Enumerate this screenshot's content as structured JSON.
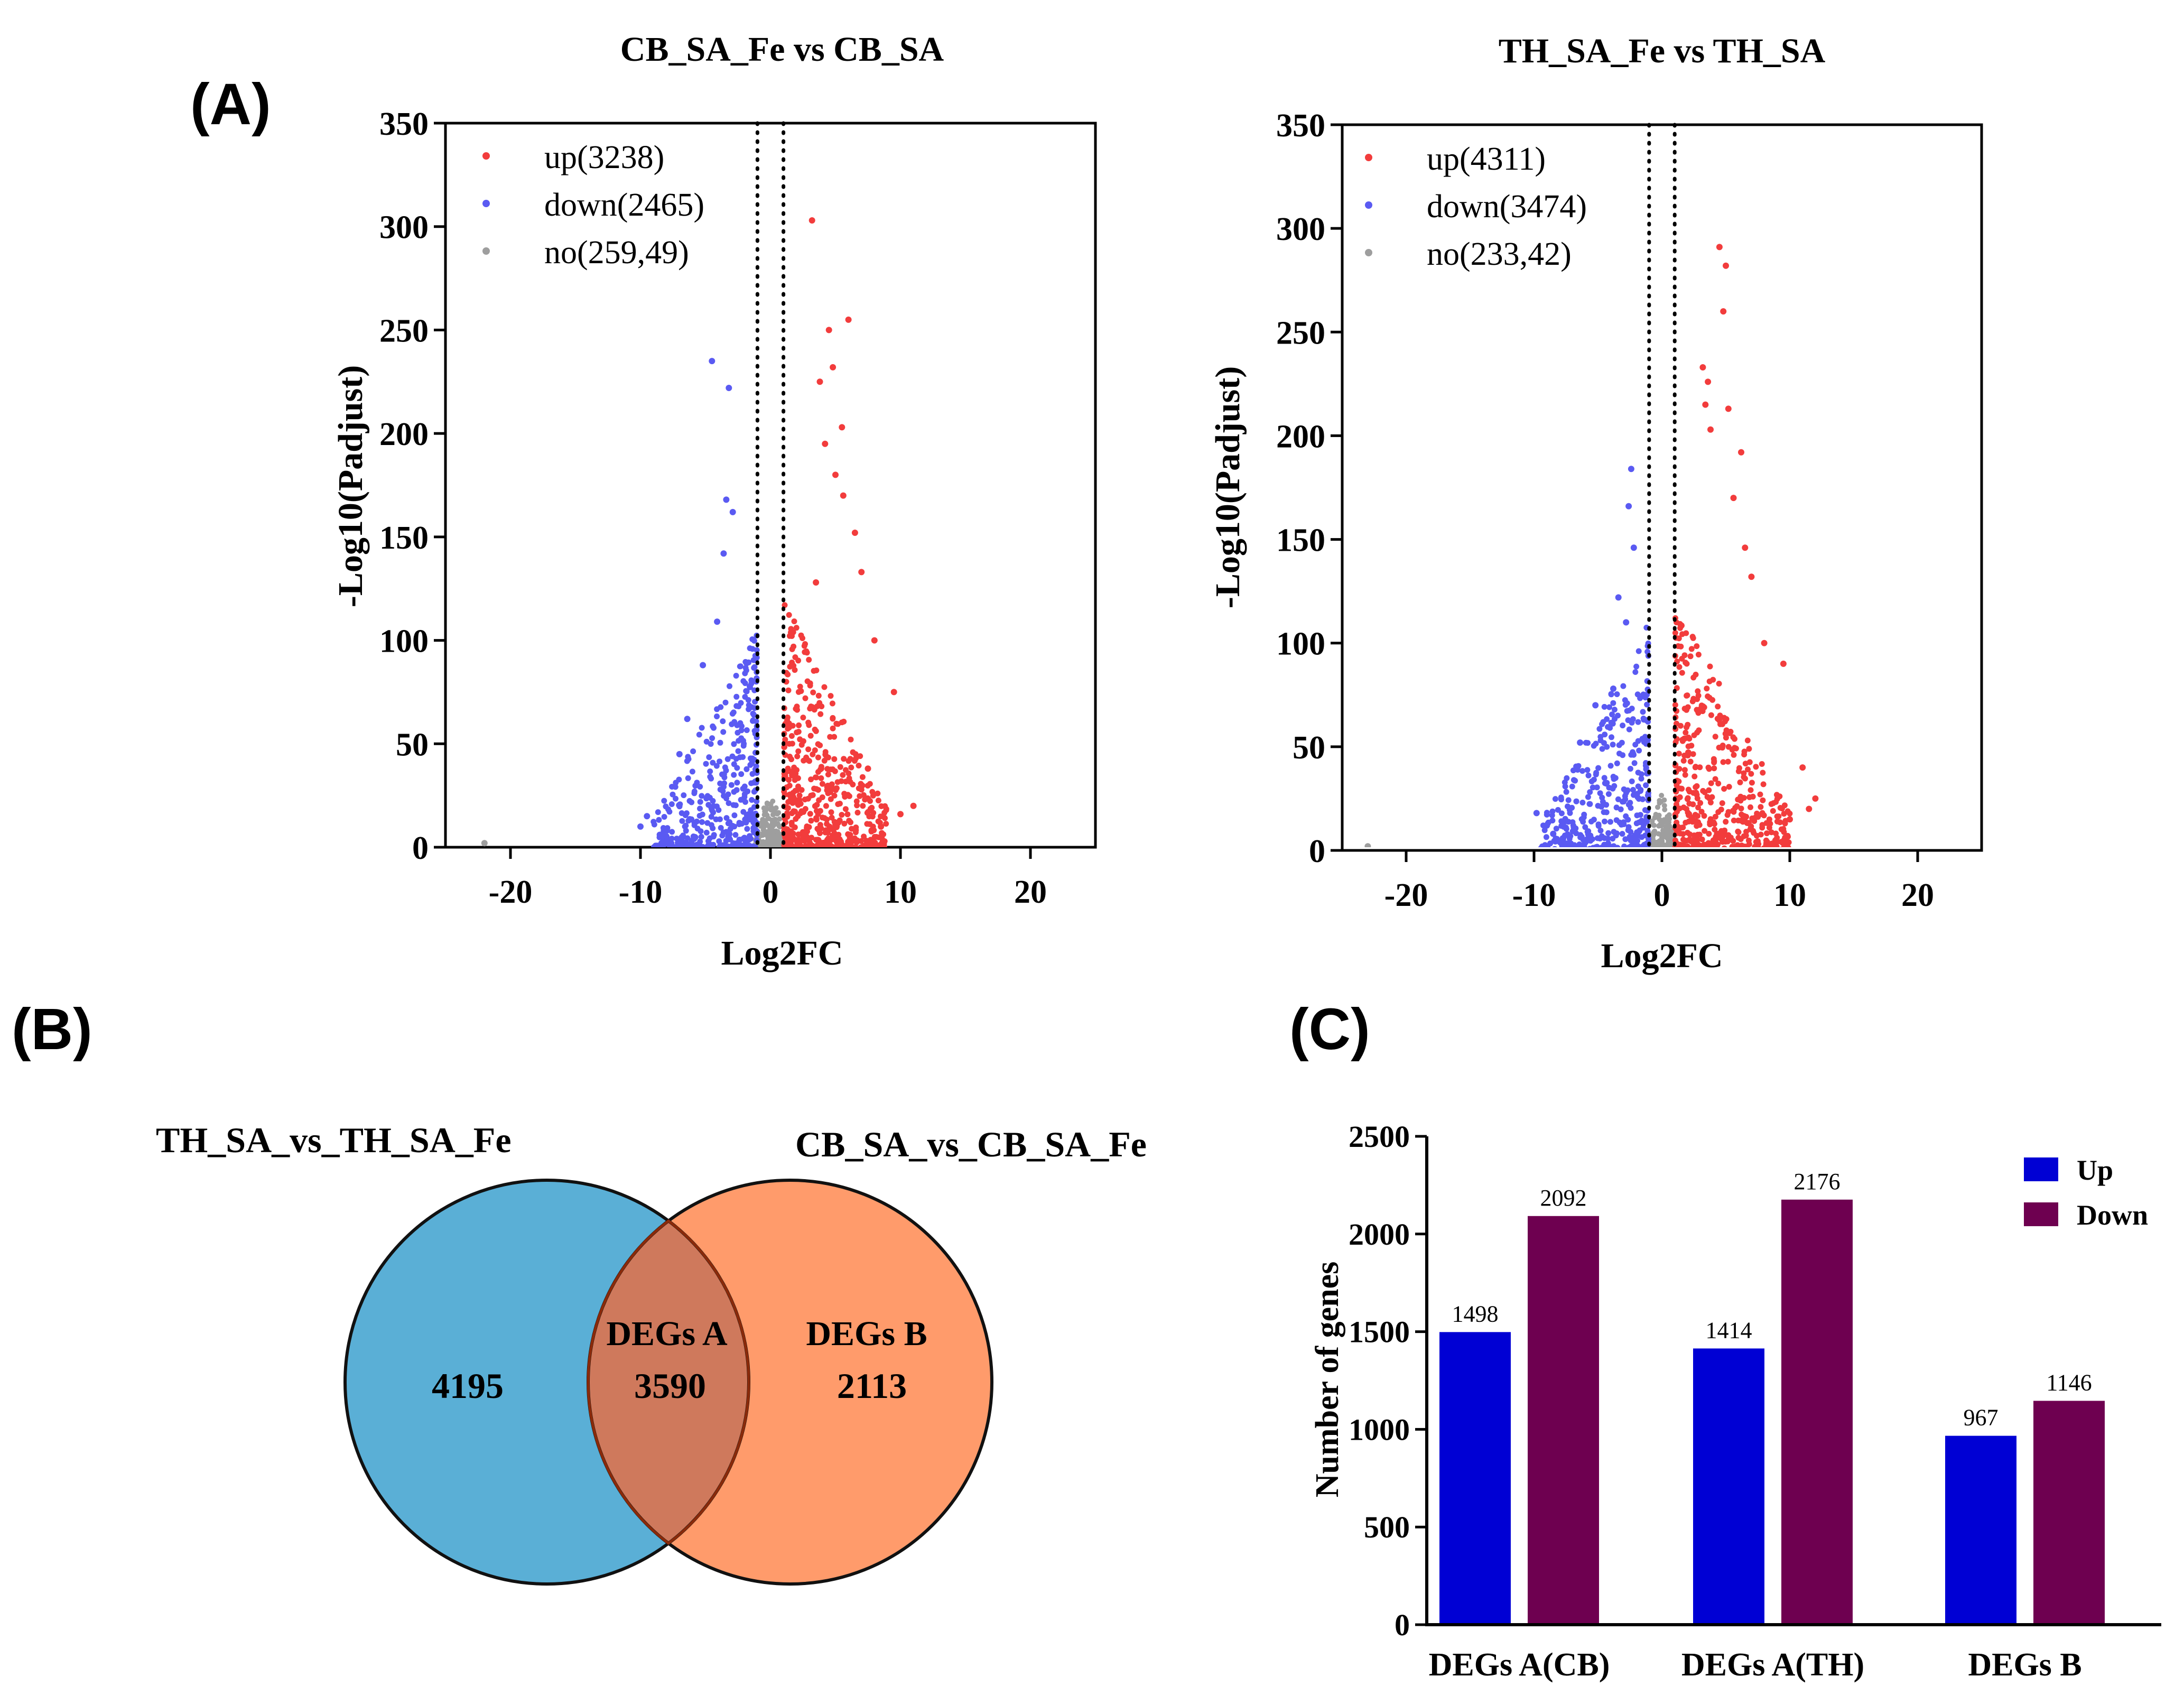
{
  "panel_labels": {
    "a": "(A)",
    "b": "(B)",
    "c": "(C)"
  },
  "colors": {
    "up": "#f23c3c",
    "down": "#5a5af2",
    "no": "#9e9e9e",
    "venn_left": "#5aafd6",
    "venn_right": "#ff9b6b",
    "venn_overlap": "#cf795c",
    "bar_up": "#0000d4",
    "bar_down": "#6e0050"
  },
  "chart_data": [
    {
      "type": "scatter",
      "title": "CB_SA_Fe vs CB_SA",
      "xlabel": "Log2FC",
      "ylabel": "-Log10(Padjust)",
      "xlim": [
        -25,
        25
      ],
      "ylim": [
        0,
        350
      ],
      "xticks": [
        "-20",
        "-10",
        "0",
        "10",
        "20"
      ],
      "yticks": [
        "0",
        "50",
        "100",
        "150",
        "200",
        "250",
        "300",
        "350"
      ],
      "thresholds": [
        -1,
        1
      ],
      "legend_position": "top-left",
      "series": [
        {
          "name": "up(3238)",
          "key": "up",
          "count": 3238
        },
        {
          "name": "down(2465)",
          "key": "down",
          "count": 2465
        },
        {
          "name": "no(259,49)",
          "key": "no",
          "count": 25949
        }
      ],
      "highlight_points": {
        "up": [
          [
            3.2,
            303
          ],
          [
            4.5,
            250
          ],
          [
            6.0,
            255
          ],
          [
            3.8,
            225
          ],
          [
            4.8,
            232
          ],
          [
            5.5,
            203
          ],
          [
            4.2,
            195
          ],
          [
            5.0,
            180
          ],
          [
            5.6,
            170
          ],
          [
            6.5,
            152
          ],
          [
            7.0,
            133
          ],
          [
            3.5,
            128
          ],
          [
            8.0,
            100
          ],
          [
            9.5,
            75
          ],
          [
            11.0,
            20
          ],
          [
            10.0,
            16
          ],
          [
            8.5,
            10
          ],
          [
            7.5,
            38
          ]
        ],
        "down": [
          [
            -4.5,
            235
          ],
          [
            -3.2,
            222
          ],
          [
            -3.4,
            168
          ],
          [
            -2.9,
            162
          ],
          [
            -3.6,
            142
          ],
          [
            -4.1,
            109
          ],
          [
            -5.2,
            88
          ],
          [
            -6.4,
            62
          ],
          [
            -7.0,
            45
          ],
          [
            -9.5,
            15
          ],
          [
            -10.0,
            10
          ],
          [
            -8.5,
            6
          ]
        ],
        "no": [
          [
            -22,
            2
          ]
        ]
      },
      "extent": {
        "up_xmax": 9,
        "down_xmin": -9,
        "up_ymax": 120,
        "down_ymax": 110
      }
    },
    {
      "type": "scatter",
      "title": "TH_SA_Fe vs TH_SA",
      "xlabel": "Log2FC",
      "ylabel": "-Log10(Padjust)",
      "xlim": [
        -25,
        25
      ],
      "ylim": [
        0,
        350
      ],
      "xticks": [
        "-20",
        "-10",
        "0",
        "10",
        "20"
      ],
      "yticks": [
        "0",
        "50",
        "100",
        "150",
        "200",
        "250",
        "300",
        "350"
      ],
      "thresholds": [
        -1,
        1
      ],
      "legend_position": "top-left",
      "series": [
        {
          "name": "up(4311)",
          "key": "up",
          "count": 4311
        },
        {
          "name": "down(3474)",
          "key": "down",
          "count": 3474
        },
        {
          "name": "no(233,42)",
          "key": "no",
          "count": 23342
        }
      ],
      "highlight_points": {
        "up": [
          [
            4.5,
            291
          ],
          [
            5.0,
            282
          ],
          [
            4.8,
            260
          ],
          [
            3.2,
            233
          ],
          [
            3.6,
            226
          ],
          [
            3.4,
            215
          ],
          [
            3.8,
            203
          ],
          [
            5.2,
            213
          ],
          [
            6.2,
            192
          ],
          [
            5.6,
            170
          ],
          [
            6.5,
            146
          ],
          [
            7.0,
            132
          ],
          [
            8.0,
            100
          ],
          [
            9.5,
            90
          ],
          [
            11.0,
            40
          ],
          [
            12.0,
            25
          ],
          [
            11.5,
            20
          ],
          [
            10.0,
            15
          ]
        ],
        "down": [
          [
            -2.4,
            184
          ],
          [
            -2.6,
            166
          ],
          [
            -2.2,
            146
          ],
          [
            -3.4,
            122
          ],
          [
            -2.8,
            110
          ],
          [
            -3.8,
            78
          ],
          [
            -5.2,
            70
          ],
          [
            -6.4,
            52
          ],
          [
            -9.8,
            18
          ],
          [
            -9.0,
            12
          ],
          [
            -8.5,
            8
          ]
        ],
        "no": [
          [
            -23,
            2
          ]
        ]
      },
      "extent": {
        "up_xmax": 10,
        "down_xmin": -9.5,
        "up_ymax": 120,
        "down_ymax": 110
      }
    },
    {
      "type": "bar",
      "categories": [
        "DEGs A(CB)",
        "DEGs A(TH)",
        "DEGs B"
      ],
      "series": [
        {
          "name": "Up",
          "values": [
            1498,
            1414,
            967
          ]
        },
        {
          "name": "Down",
          "values": [
            2092,
            2176,
            1146
          ]
        }
      ],
      "title": "",
      "xlabel": "",
      "ylabel": "Number of genes",
      "ylim": [
        0,
        2500
      ],
      "yticks": [
        "0",
        "500",
        "1000",
        "1500",
        "2000",
        "2500"
      ],
      "legend_position": "top-right"
    }
  ],
  "venn": {
    "left_title": "TH_SA_vs_TH_SA_Fe",
    "right_title": "CB_SA_vs_CB_SA_Fe",
    "left_value": "4195",
    "overlap_label": "DEGs A",
    "overlap_value": "3590",
    "right_label": "DEGs B",
    "right_value": "2113"
  }
}
